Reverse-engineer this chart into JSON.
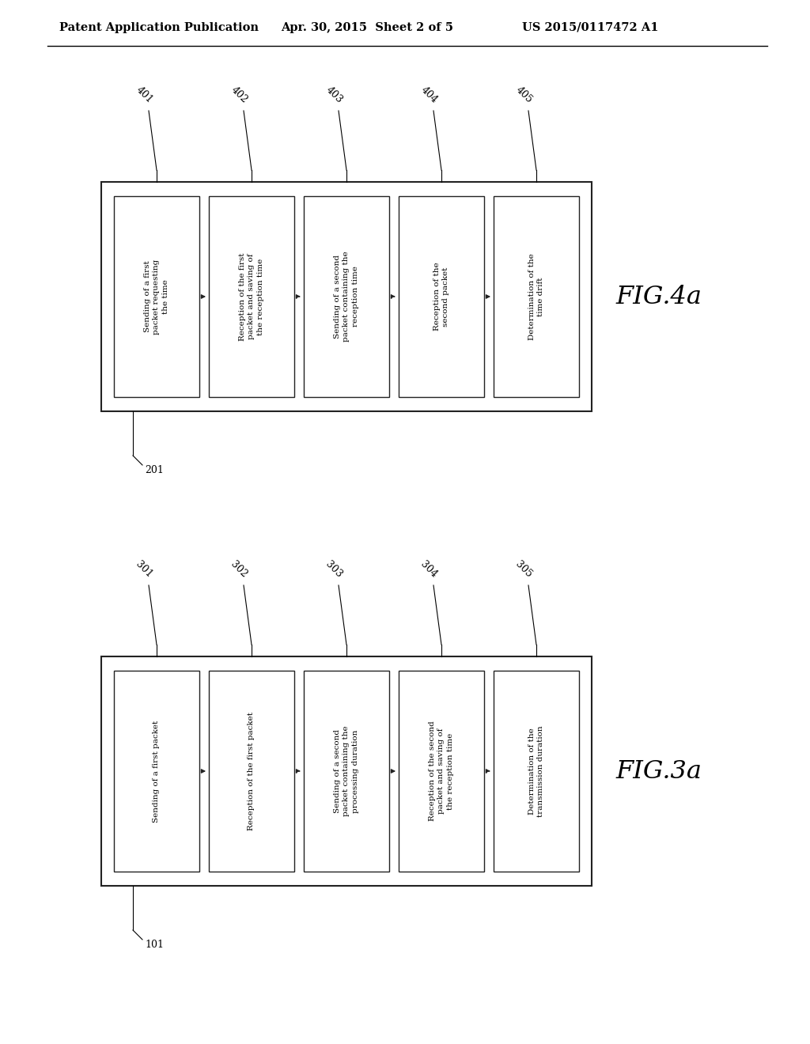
{
  "bg_color": "#ffffff",
  "header_left": "Patent Application Publication",
  "header_center": "Apr. 30, 2015  Sheet 2 of 5",
  "header_right": "US 2015/0117472 A1",
  "fig4a": {
    "label": "FIG.4a",
    "outer_label": "201",
    "boxes": [
      {
        "id": "401",
        "text": "Sending of a first\npacket requesting\nthe time"
      },
      {
        "id": "402",
        "text": "Reception of the first\npacket and saving of\nthe reception time"
      },
      {
        "id": "403",
        "text": "Sending of a second\npacket containing the\nreception time"
      },
      {
        "id": "404",
        "text": "Reception of the\nsecond packet"
      },
      {
        "id": "405",
        "text": "Determination of the\ntime drift"
      }
    ],
    "arrows": [
      {
        "from": 0,
        "to": 1,
        "style": "solid"
      },
      {
        "from": 1,
        "to": 2,
        "style": "dotted"
      },
      {
        "from": 2,
        "to": 3,
        "style": "dotted"
      },
      {
        "from": 3,
        "to": 4,
        "style": "solid"
      }
    ]
  },
  "fig3a": {
    "label": "FIG.3a",
    "outer_label": "101",
    "boxes": [
      {
        "id": "301",
        "text": "Sending of a first packet"
      },
      {
        "id": "302",
        "text": "Reception of the first packet"
      },
      {
        "id": "303",
        "text": "Sending of a second\npacket containing the\nprocessing duration"
      },
      {
        "id": "304",
        "text": "Reception of the second\npacket and saving of\nthe reception time"
      },
      {
        "id": "305",
        "text": "Determination of the\ntransmission duration"
      }
    ],
    "arrows": [
      {
        "from": 0,
        "to": 1,
        "style": "solid"
      },
      {
        "from": 1,
        "to": 2,
        "style": "dotted"
      },
      {
        "from": 2,
        "to": 3,
        "style": "solid"
      },
      {
        "from": 3,
        "to": 4,
        "style": "dotted"
      }
    ]
  }
}
